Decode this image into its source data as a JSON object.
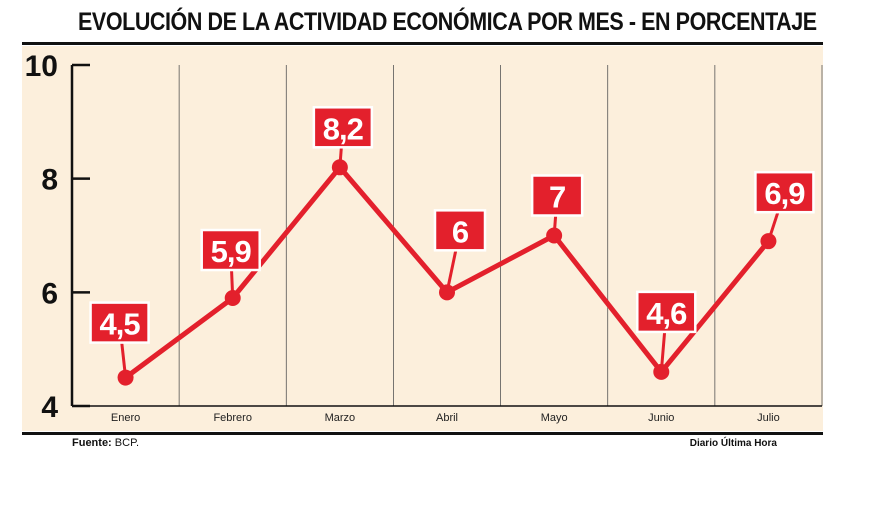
{
  "chart_data": {
    "type": "line",
    "title": "EVOLUCIÓN DE LA ACTIVIDAD ECONÓMICA POR MES - EN PORCENTAJE",
    "categories": [
      "Enero",
      "Febrero",
      "Marzo",
      "Abril",
      "Mayo",
      "Junio",
      "Julio"
    ],
    "series": [
      {
        "values": [
          4.5,
          5.9,
          8.2,
          6,
          7,
          4.6,
          6.9
        ]
      }
    ],
    "data_labels": [
      "4,5",
      "5,9",
      "8,2",
      "6",
      "7",
      "4,6",
      "6,9"
    ],
    "y_ticks": [
      "4",
      "6",
      "8",
      "10"
    ],
    "ylim": [
      4,
      10
    ],
    "grid": "vertical",
    "legend": "none"
  },
  "footer": {
    "source_label": "Fuente:",
    "source_value": " BCP.",
    "credit": "Diario Última Hora"
  },
  "colors": {
    "background": "#fcefdc",
    "line": "#e3202c",
    "label_fill": "#e3202c",
    "label_text": "#ffffff",
    "axis": "#111111"
  }
}
